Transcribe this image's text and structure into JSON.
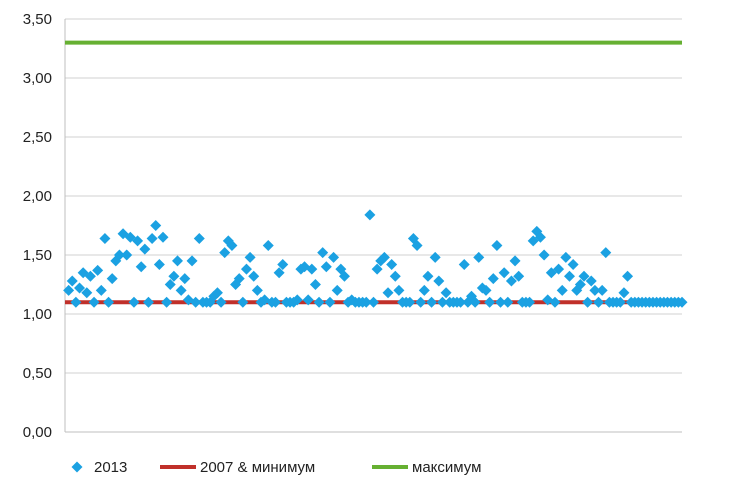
{
  "chart_data": {
    "type": "scatter",
    "xlim": [
      0,
      170
    ],
    "ylim": [
      0,
      3.5
    ],
    "yticks": [
      "0,00",
      "0,50",
      "1,00",
      "1,50",
      "2,00",
      "2,50",
      "3,00",
      "3,50"
    ],
    "grid": true,
    "legend_position": "bottom",
    "series": [
      {
        "name": "2013",
        "type": "scatter",
        "marker": "diamond",
        "color": "#1BA1E2",
        "x": [
          1,
          2,
          3,
          4,
          5,
          6,
          7,
          8,
          9,
          10,
          11,
          12,
          13,
          14,
          15,
          16,
          17,
          18,
          19,
          20,
          21,
          22,
          23,
          24,
          25,
          26,
          27,
          28,
          29,
          30,
          31,
          32,
          33,
          34,
          35,
          36,
          37,
          38,
          39,
          40,
          41,
          42,
          43,
          44,
          45,
          46,
          47,
          48,
          49,
          50,
          51,
          52,
          53,
          54,
          55,
          56,
          57,
          58,
          59,
          60,
          61,
          62,
          63,
          64,
          65,
          66,
          67,
          68,
          69,
          70,
          71,
          72,
          73,
          74,
          75,
          76,
          77,
          78,
          79,
          80,
          81,
          82,
          83,
          84,
          85,
          86,
          87,
          88,
          89,
          90,
          91,
          92,
          93,
          94,
          95,
          96,
          97,
          98,
          99,
          100,
          101,
          102,
          103,
          104,
          105,
          106,
          107,
          108,
          109,
          110,
          111,
          112,
          113,
          114,
          115,
          116,
          117,
          118,
          119,
          120,
          121,
          122,
          123,
          124,
          125,
          126,
          127,
          128,
          129,
          130,
          131,
          132,
          133,
          134,
          135,
          136,
          137,
          138,
          139,
          140,
          141,
          142,
          143,
          144,
          145,
          146,
          147,
          148,
          149,
          150,
          151,
          152,
          153,
          154,
          155,
          156,
          157,
          158,
          159,
          160,
          161,
          162,
          163,
          164,
          165,
          166,
          167,
          168,
          169,
          170
        ],
        "y": [
          1.2,
          1.28,
          1.1,
          1.22,
          1.35,
          1.18,
          1.32,
          1.1,
          1.37,
          1.2,
          1.64,
          1.1,
          1.3,
          1.45,
          1.5,
          1.68,
          1.5,
          1.65,
          1.1,
          1.62,
          1.4,
          1.55,
          1.1,
          1.64,
          1.75,
          1.42,
          1.65,
          1.1,
          1.25,
          1.32,
          1.45,
          1.2,
          1.3,
          1.12,
          1.45,
          1.1,
          1.64,
          1.1,
          1.1,
          1.1,
          1.15,
          1.18,
          1.1,
          1.52,
          1.62,
          1.58,
          1.25,
          1.3,
          1.1,
          1.38,
          1.48,
          1.32,
          1.2,
          1.1,
          1.12,
          1.58,
          1.1,
          1.1,
          1.35,
          1.42,
          1.1,
          1.1,
          1.1,
          1.12,
          1.38,
          1.4,
          1.12,
          1.38,
          1.25,
          1.1,
          1.52,
          1.4,
          1.1,
          1.48,
          1.2,
          1.38,
          1.32,
          1.1,
          1.12,
          1.1,
          1.1,
          1.1,
          1.1,
          1.84,
          1.1,
          1.38,
          1.45,
          1.48,
          1.18,
          1.42,
          1.32,
          1.2,
          1.1,
          1.1,
          1.1,
          1.64,
          1.58,
          1.1,
          1.2,
          1.32,
          1.1,
          1.48,
          1.28,
          1.1,
          1.18,
          1.1,
          1.1,
          1.1,
          1.1,
          1.42,
          1.1,
          1.15,
          1.1,
          1.48,
          1.22,
          1.2,
          1.1,
          1.3,
          1.58,
          1.1,
          1.35,
          1.1,
          1.28,
          1.45,
          1.32,
          1.1,
          1.1,
          1.1,
          1.62,
          1.7,
          1.65,
          1.5,
          1.12,
          1.35,
          1.1,
          1.38,
          1.2,
          1.48,
          1.32,
          1.42,
          1.2,
          1.25,
          1.32,
          1.1,
          1.28,
          1.2,
          1.1,
          1.2,
          1.52,
          1.1,
          1.1,
          1.1,
          1.1,
          1.18,
          1.32,
          1.1,
          1.1,
          1.1,
          1.1,
          1.1,
          1.1,
          1.1,
          1.1,
          1.1,
          1.1,
          1.1,
          1.1,
          1.1,
          1.1,
          1.1
        ]
      },
      {
        "name": "2007 & минимум",
        "type": "line",
        "color": "#C0302A",
        "x": [
          0,
          170
        ],
        "y": [
          1.1,
          1.1
        ]
      },
      {
        "name": "максимум",
        "type": "line",
        "color": "#66B032",
        "x": [
          0,
          170
        ],
        "y": [
          3.3,
          3.3
        ]
      }
    ]
  }
}
